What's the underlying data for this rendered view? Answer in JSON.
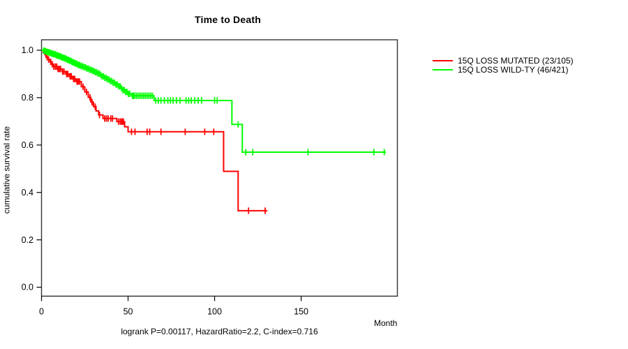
{
  "chart_data": {
    "type": "line",
    "subtype": "kaplan_meier_step_survival",
    "title": "Time to Death",
    "xlabel": "Month",
    "ylabel": "cumulative survival rate",
    "footer": "logrank P=0.00117, HazardRatio=2.2, C-index=0.716",
    "xlim": [
      0,
      205.6
    ],
    "ylim": [
      0,
      1
    ],
    "grid": false,
    "legend_position": "right-outside",
    "x_ticks": [
      {
        "v": 0,
        "label": "0"
      },
      {
        "v": 50,
        "label": "50"
      },
      {
        "v": 100,
        "label": "100"
      },
      {
        "v": 150,
        "label": "150"
      }
    ],
    "y_ticks": [
      {
        "v": 0.0,
        "label": "0.0"
      },
      {
        "v": 0.2,
        "label": "0.2"
      },
      {
        "v": 0.4,
        "label": "0.4"
      },
      {
        "v": 0.6,
        "label": "0.6"
      },
      {
        "v": 0.8,
        "label": "0.8"
      },
      {
        "v": 1.0,
        "label": "1.0"
      }
    ],
    "axis_color": "#333333",
    "series": [
      {
        "name": "15Q LOSS MUTATED (23/105)",
        "color": "#ff0000",
        "end": 130.5,
        "steps": [
          [
            0,
            1
          ],
          [
            1,
            0.99
          ],
          [
            2,
            0.981
          ],
          [
            3,
            0.971
          ],
          [
            4,
            0.961
          ],
          [
            5,
            0.951
          ],
          [
            6,
            0.941
          ],
          [
            7,
            0.931
          ],
          [
            9,
            0.921
          ],
          [
            12,
            0.91
          ],
          [
            14,
            0.9
          ],
          [
            16,
            0.89
          ],
          [
            18,
            0.879
          ],
          [
            20,
            0.868
          ],
          [
            23,
            0.846
          ],
          [
            25,
            0.824
          ],
          [
            27,
            0.801
          ],
          [
            28.5,
            0.781
          ],
          [
            30,
            0.762
          ],
          [
            31.5,
            0.744
          ],
          [
            33,
            0.727
          ],
          [
            35.5,
            0.712
          ],
          [
            43.5,
            0.699
          ],
          [
            48,
            0.677
          ],
          [
            50,
            0.656
          ],
          [
            105.2,
            0.489
          ],
          [
            113.6,
            0.323
          ]
        ],
        "censors": [
          2.5,
          3.2,
          4.1,
          5.3,
          6.2,
          7.1,
          8,
          8.8,
          9.5,
          10.3,
          11,
          12.2,
          13,
          14.5,
          15.2,
          16.5,
          17.2,
          18.5,
          19.2,
          20.5,
          21.2,
          22,
          24,
          26,
          28,
          29.2,
          31,
          33.5,
          36.5,
          37.5,
          38.5,
          40,
          41,
          44.5,
          45.5,
          46.3,
          46.8,
          47.3,
          52,
          54,
          61,
          62.5,
          69,
          83,
          94.3,
          99.5,
          119.6,
          129.2
        ]
      },
      {
        "name": "15Q LOSS WILD-TY (46/421)",
        "color": "#00ff00",
        "end": 199,
        "steps": [
          [
            0,
            1
          ],
          [
            1,
            0.998
          ],
          [
            2,
            0.9955
          ],
          [
            3,
            0.993
          ],
          [
            4,
            0.9905
          ],
          [
            5,
            0.988
          ],
          [
            6,
            0.9855
          ],
          [
            7,
            0.983
          ],
          [
            8,
            0.98
          ],
          [
            9,
            0.9775
          ],
          [
            10,
            0.975
          ],
          [
            11,
            0.972
          ],
          [
            12,
            0.969
          ],
          [
            13,
            0.966
          ],
          [
            14,
            0.963
          ],
          [
            15,
            0.9595
          ],
          [
            16,
            0.956
          ],
          [
            17,
            0.9525
          ],
          [
            18,
            0.949
          ],
          [
            19,
            0.945
          ],
          [
            20,
            0.941
          ],
          [
            21.5,
            0.937
          ],
          [
            23,
            0.9325
          ],
          [
            24.5,
            0.928
          ],
          [
            26,
            0.923
          ],
          [
            27.5,
            0.918
          ],
          [
            29,
            0.913
          ],
          [
            30.5,
            0.9075
          ],
          [
            32,
            0.902
          ],
          [
            33.5,
            0.896
          ],
          [
            35,
            0.89
          ],
          [
            36.5,
            0.8835
          ],
          [
            38,
            0.877
          ],
          [
            39.5,
            0.87
          ],
          [
            41,
            0.863
          ],
          [
            42.5,
            0.8555
          ],
          [
            44,
            0.848
          ],
          [
            45.5,
            0.84
          ],
          [
            47,
            0.832
          ],
          [
            48.5,
            0.824
          ],
          [
            50,
            0.816
          ],
          [
            52,
            0.808
          ],
          [
            65,
            0.788
          ],
          [
            110,
            0.687
          ],
          [
            116,
            0.57
          ]
        ],
        "censors": [
          1.2,
          1.8,
          2.4,
          3,
          3.6,
          4.2,
          4.8,
          5.4,
          6,
          6.6,
          7.2,
          7.8,
          8.4,
          9,
          9.6,
          10.2,
          10.8,
          11.4,
          12,
          12.6,
          13.2,
          13.8,
          14.4,
          15,
          15.6,
          16.2,
          16.8,
          17.4,
          18,
          18.6,
          19.2,
          19.8,
          20.4,
          21,
          21.6,
          22.2,
          23,
          23.8,
          24.6,
          25.4,
          26.2,
          27,
          27.8,
          28.6,
          29.4,
          30.2,
          31,
          31.8,
          32.6,
          33.4,
          34.2,
          35,
          35.8,
          36.6,
          37.4,
          38.2,
          39,
          39.8,
          40.6,
          41.4,
          42.2,
          43,
          43.8,
          44.6,
          45.4,
          46.2,
          47,
          47.8,
          48.6,
          49.4,
          50.2,
          51,
          52.5,
          53.2,
          54,
          55,
          56,
          57,
          58,
          59,
          60,
          61,
          62,
          63,
          64,
          66,
          67.5,
          69,
          71,
          73,
          74.5,
          76,
          78,
          80,
          83.5,
          85,
          86.5,
          88.5,
          90.5,
          92.5,
          100,
          101.5,
          113.6,
          118,
          122,
          154,
          192,
          198
        ]
      }
    ]
  }
}
